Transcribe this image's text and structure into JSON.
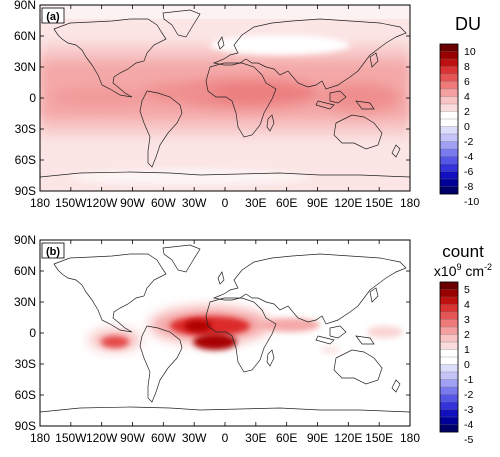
{
  "panels": [
    {
      "label": "(a)",
      "colorbar": {
        "title": "DU",
        "ticks": [
          "10",
          "8",
          "6",
          "4",
          "2",
          "0",
          "-2",
          "-4",
          "-6",
          "-8",
          "-10"
        ],
        "colors": [
          "#6b0000",
          "#990000",
          "#bf1010",
          "#d93333",
          "#e65555",
          "#ef7a7a",
          "#f4a0a0",
          "#f8c4c4",
          "#fbdcdc",
          "#ffffff",
          "#ffffff",
          "#dcdcfb",
          "#c4c4f8",
          "#a0a0f4",
          "#7a7aef",
          "#5555e6",
          "#3333d9",
          "#1010bf",
          "#000099",
          "#00006b"
        ]
      }
    },
    {
      "label": "(b)",
      "colorbar": {
        "title": "count",
        "unit_prefix": "x10",
        "unit_exp": "9",
        "unit_mid": " cm",
        "unit_exp2": "-2",
        "ticks": [
          "5",
          "4",
          "3",
          "2",
          "1",
          "0",
          "-1",
          "-2",
          "-3",
          "-4",
          "-5"
        ],
        "colors": [
          "#6b0000",
          "#990000",
          "#bf1010",
          "#d93333",
          "#e65555",
          "#ef7a7a",
          "#f4a0a0",
          "#f8c4c4",
          "#fbdcdc",
          "#ffffff",
          "#ffffff",
          "#dcdcfb",
          "#c4c4f8",
          "#a0a0f4",
          "#7a7aef",
          "#5555e6",
          "#3333d9",
          "#1010bf",
          "#000099",
          "#00006b"
        ]
      }
    }
  ],
  "lat_labels": [
    "90N",
    "60N",
    "30N",
    "0",
    "30S",
    "60S",
    "90S"
  ],
  "lon_labels": [
    "180",
    "150W",
    "120W",
    "90W",
    "60W",
    "30W",
    "0",
    "30E",
    "60E",
    "90E",
    "120E",
    "150E",
    "180"
  ]
}
